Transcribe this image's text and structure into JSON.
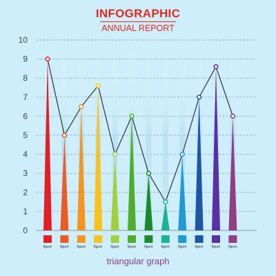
{
  "header": {
    "title": "INFOGRAPHIC",
    "subtitle": "ANNUAL REPORT"
  },
  "footer": {
    "caption": "triangular graph"
  },
  "chart_data": {
    "type": "bar",
    "subtype": "triangular",
    "categories": [
      "figure",
      "figure",
      "figure",
      "figure",
      "figure",
      "figure",
      "figure",
      "figure",
      "figure",
      "figure",
      "figure",
      "figure"
    ],
    "values": [
      9,
      5,
      6.5,
      7.6,
      4,
      6,
      3,
      1.5,
      4,
      7,
      8.6,
      6
    ],
    "colors": [
      "#e31e24",
      "#f05a22",
      "#f7941d",
      "#f9c21b",
      "#a3cf3a",
      "#4caf2a",
      "#198a2c",
      "#1bb29a",
      "#1e9ad6",
      "#1f55a5",
      "#5b2ea6",
      "#943c84"
    ],
    "ylim": [
      0,
      10
    ],
    "yticks": [
      0,
      1,
      2,
      3,
      4,
      5,
      6,
      7,
      8,
      9,
      10
    ],
    "grid": true,
    "line_overlay": true,
    "line_color": "#222222"
  }
}
